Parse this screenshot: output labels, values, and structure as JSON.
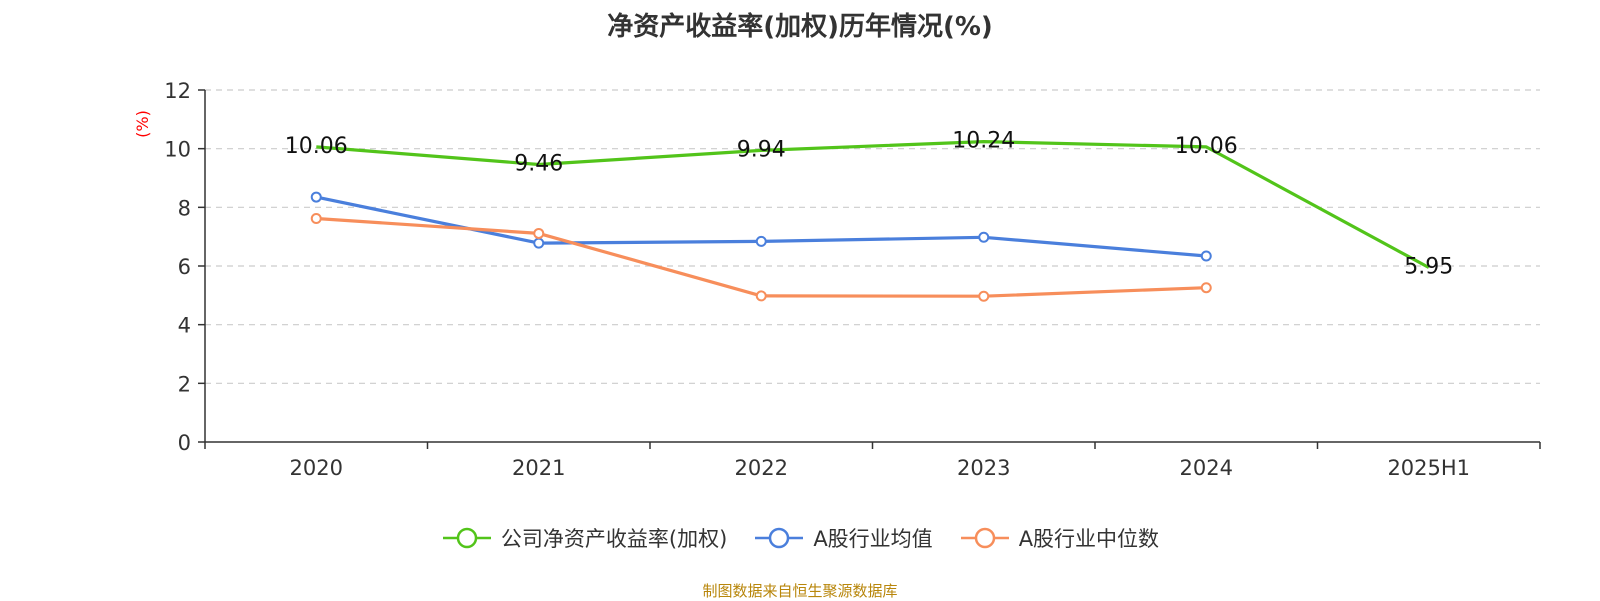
{
  "chart_data": {
    "type": "line",
    "title": "净资产收益率(加权)历年情况(%)",
    "xlabel": "",
    "ylabel": "(%)",
    "ylim": [
      0,
      12
    ],
    "yticks": [
      0,
      2,
      4,
      6,
      8,
      10,
      12
    ],
    "grid": true,
    "categories": [
      "2020",
      "2021",
      "2022",
      "2023",
      "2024",
      "2025H1"
    ],
    "series": [
      {
        "name": "公司净资产收益率(加权)",
        "color": "#52c41a",
        "values": [
          10.06,
          9.46,
          9.94,
          10.24,
          10.06,
          5.95
        ],
        "labels": [
          "10.06",
          "9.46",
          "9.94",
          "10.24",
          "10.06",
          "5.95"
        ],
        "show_markers": false
      },
      {
        "name": "A股行业均值",
        "color": "#4a7fdc",
        "values": [
          8.35,
          6.78,
          6.84,
          6.98,
          6.34,
          null
        ],
        "show_markers": true
      },
      {
        "name": "A股行业中位数",
        "color": "#f78e5b",
        "values": [
          7.62,
          7.11,
          4.98,
          4.97,
          5.26,
          null
        ],
        "show_markers": true
      }
    ],
    "legend_position": "bottom",
    "source_text": "制图数据来自恒生聚源数据库"
  }
}
